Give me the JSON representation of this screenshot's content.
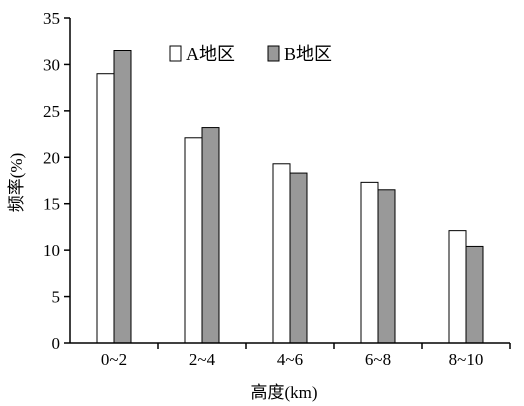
{
  "chart_data": {
    "type": "bar",
    "categories": [
      "0~2",
      "2~4",
      "4~6",
      "6~8",
      "8~10"
    ],
    "series": [
      {
        "name": "A地区",
        "values": [
          29.0,
          22.1,
          19.3,
          17.3,
          12.1
        ],
        "color": "#ffffff"
      },
      {
        "name": "B地区",
        "values": [
          31.5,
          23.2,
          18.3,
          16.5,
          10.4
        ],
        "color": "#999999"
      }
    ],
    "xlabel": "高度(km)",
    "ylabel": "频率(%)",
    "ylim": [
      0,
      35
    ],
    "yticks": [
      0,
      5,
      10,
      15,
      20,
      25,
      30,
      35
    ],
    "grid": false,
    "legend_position": "top-center"
  }
}
